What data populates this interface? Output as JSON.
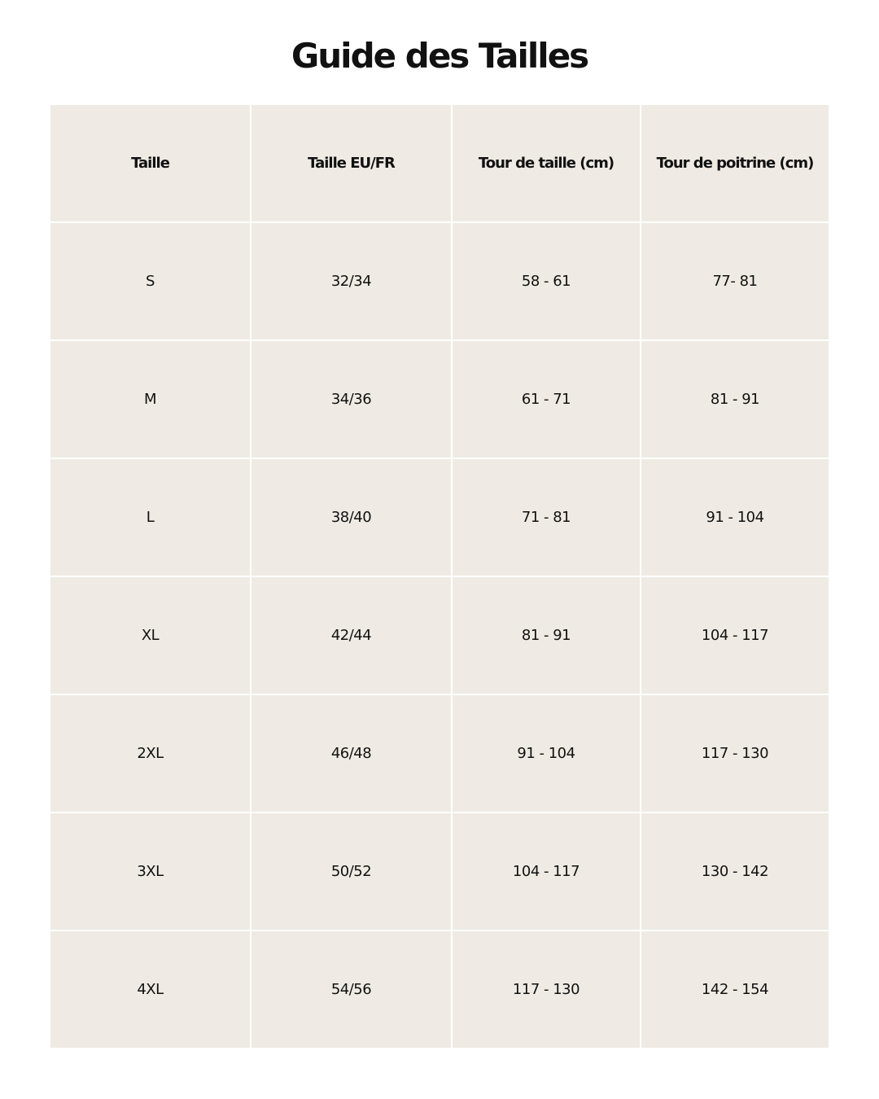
{
  "title": "Guide des Tailles",
  "colors": {
    "cell_background": "#efebe4",
    "text": "#111111",
    "grid_lines": "#ffffff"
  },
  "table": {
    "headers": [
      "Taille",
      "Taille EU/FR",
      "Tour de taille (cm)",
      "Tour de poitrine (cm)"
    ],
    "rows": [
      [
        "S",
        "32/34",
        "58 - 61",
        "77- 81"
      ],
      [
        "M",
        "34/36",
        "61 - 71",
        "81 - 91"
      ],
      [
        "L",
        "38/40",
        "71 - 81",
        "91 - 104"
      ],
      [
        "XL",
        "42/44",
        "81 - 91",
        "104 - 117"
      ],
      [
        "2XL",
        "46/48",
        "91 - 104",
        "117 - 130"
      ],
      [
        "3XL",
        "50/52",
        "104 - 117",
        "130 - 142"
      ],
      [
        "4XL",
        "54/56",
        "117 - 130",
        "142 - 154"
      ]
    ]
  }
}
